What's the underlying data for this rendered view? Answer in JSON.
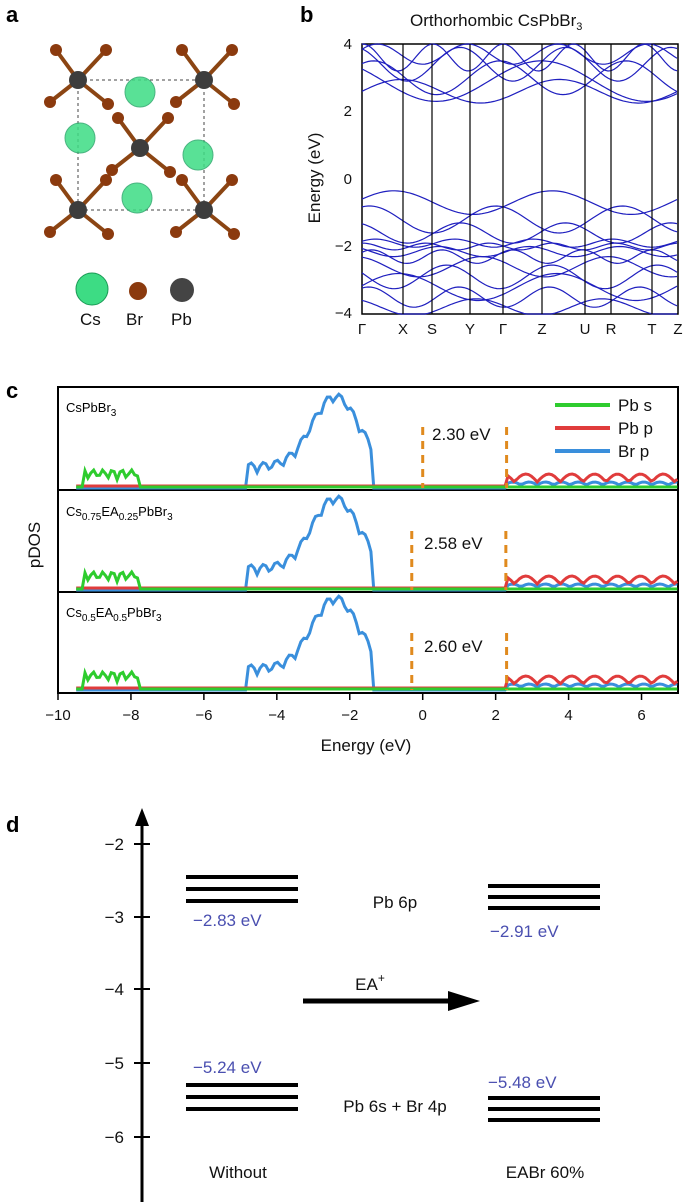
{
  "panels": {
    "a": {
      "letter": "a",
      "legend": [
        "Cs",
        "Br",
        "Pb"
      ],
      "colors": {
        "cs": "#3ddc84",
        "br": "#8b3a0e",
        "pb": "#3d3d3d"
      }
    },
    "b": {
      "letter": "b",
      "title_main": "Orthorhombic CsPbBr",
      "title_sub": "3",
      "ylabel": "Energy (eV)",
      "yticks": [
        "4",
        "2",
        "0",
        "−2",
        "−4"
      ],
      "kpoints": [
        "Γ",
        "X",
        "S",
        "Y",
        "Γ",
        "Z",
        "U",
        "R",
        "T",
        "Z"
      ],
      "line_color": "#1f1fbf"
    },
    "c": {
      "letter": "c",
      "ylabel": "pDOS",
      "xlabel": "Energy (eV)",
      "xticks": [
        "−10",
        "−8",
        "−6",
        "−4",
        "−2",
        "0",
        "2",
        "4",
        "6"
      ],
      "legend": [
        {
          "name": "Pb s",
          "color": "#2ecc2e"
        },
        {
          "name": "Pb p",
          "color": "#e03c3c"
        },
        {
          "name": "Br p",
          "color": "#3a8fdc"
        }
      ],
      "rows": [
        {
          "label_parts": [
            {
              "t": "CsPbBr",
              "s": false
            },
            {
              "t": "3",
              "s": true
            }
          ],
          "gap": "2.30 eV"
        },
        {
          "label_parts": [
            {
              "t": "Cs",
              "s": false
            },
            {
              "t": "0.75",
              "s": true
            },
            {
              "t": "EA",
              "s": false
            },
            {
              "t": "0.25",
              "s": true
            },
            {
              "t": "PbBr",
              "s": false
            },
            {
              "t": "3",
              "s": true
            }
          ],
          "gap": "2.58 eV"
        },
        {
          "label_parts": [
            {
              "t": "Cs",
              "s": false
            },
            {
              "t": "0.5",
              "s": true
            },
            {
              "t": "EA",
              "s": false
            },
            {
              "t": "0.5",
              "s": true
            },
            {
              "t": "PbBr",
              "s": false
            },
            {
              "t": "3",
              "s": true
            }
          ],
          "gap": "2.60 eV"
        }
      ]
    },
    "d": {
      "letter": "d",
      "yticks": [
        "−2",
        "−3",
        "−4",
        "−5",
        "−6"
      ],
      "cb_label": "Pb 6p",
      "vb_label": "Pb 6s + Br 4p",
      "arrow_label": "EA",
      "arrow_sup": "+",
      "without": {
        "label": "Without",
        "cb": "−2.83 eV",
        "vb": "−5.24 eV"
      },
      "with": {
        "label": "EABr 60%",
        "cb": "−2.91 eV",
        "vb": "−5.48 eV"
      },
      "value_color": "#4a4fb0"
    }
  }
}
